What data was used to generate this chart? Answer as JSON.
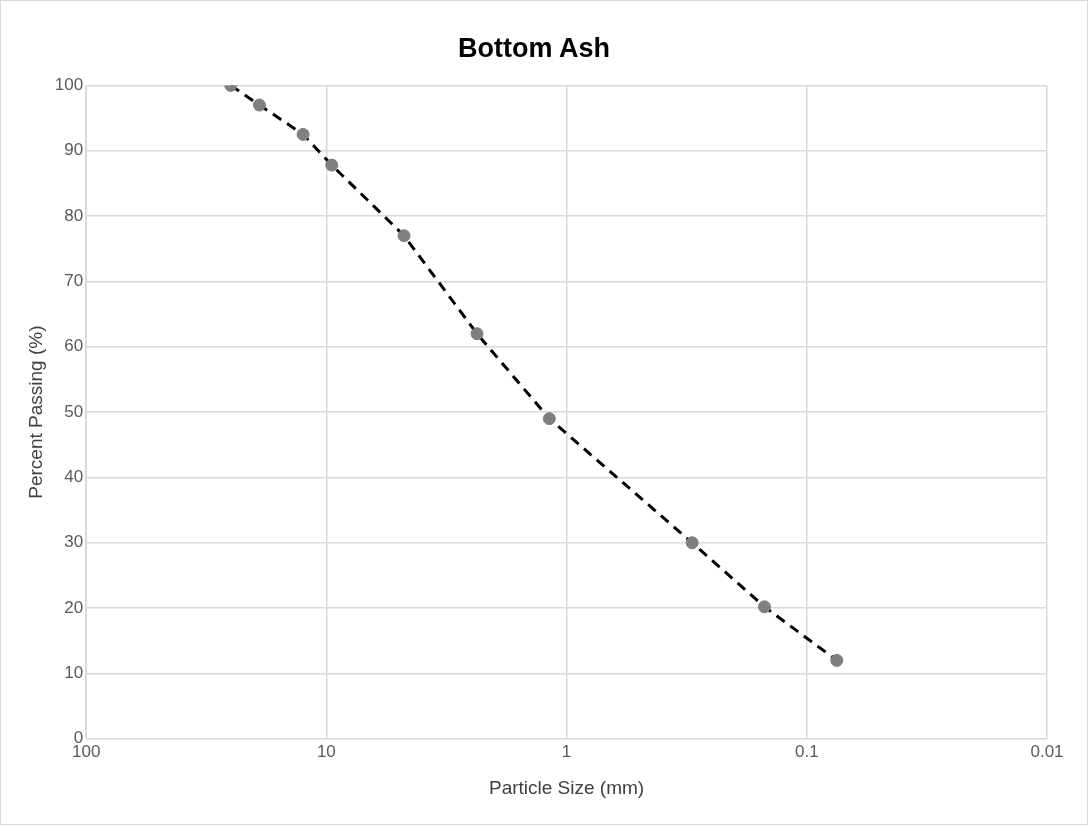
{
  "chart_data": {
    "type": "line",
    "title": "Bottom Ash",
    "xlabel": "Particle Size (mm)",
    "ylabel": "Percent Passing (%)",
    "x": [
      25,
      19,
      12.5,
      9.5,
      4.75,
      2.36,
      1.18,
      0.3,
      0.15,
      0.075
    ],
    "series": [
      {
        "color": "#7f7f7f",
        "values": [
          100,
          97,
          92.5,
          87.8,
          77,
          62,
          49,
          30,
          20.2,
          12
        ]
      }
    ],
    "xlim": [
      100,
      0.01
    ],
    "xticks": [
      100,
      10,
      1,
      0.1,
      0.01
    ],
    "ylim": [
      0,
      100
    ],
    "yticks": [
      0,
      10,
      20,
      30,
      40,
      50,
      60,
      70,
      80,
      90,
      100
    ],
    "log": "x",
    "grid": true,
    "legend": false,
    "marker": "circle",
    "line_style": "dashed"
  }
}
